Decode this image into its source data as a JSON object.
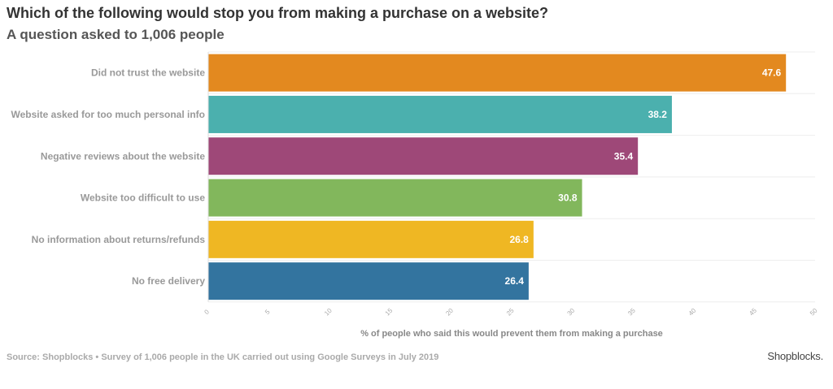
{
  "title": "Which of the following would stop you from making a purchase on a website?",
  "subtitle": "A question asked to 1,006 people",
  "source": "Source: Shopblocks • Survey of 1,006 people in the UK carried out using Google Surveys in July 2019",
  "brand": "Shopblocks.",
  "chart_data": {
    "type": "bar",
    "orientation": "horizontal",
    "categories": [
      "Did not trust the website",
      "Website asked for too much personal info",
      "Negative reviews about the website",
      "Website too difficult to use",
      "No information about returns/refunds",
      "No free delivery"
    ],
    "values": [
      47.6,
      38.2,
      35.4,
      30.8,
      26.8,
      26.4
    ],
    "colors": [
      "#E3891F",
      "#4BB0AE",
      "#9E4878",
      "#82B75C",
      "#EFB723",
      "#33749F"
    ],
    "xlabel": "% of people who said this would prevent them from making a purchase",
    "ylabel": "",
    "xlim": [
      0,
      50
    ],
    "xticks": [
      0,
      5,
      10,
      15,
      20,
      25,
      30,
      35,
      40,
      45,
      50
    ],
    "grid": true,
    "data_labels": true
  }
}
